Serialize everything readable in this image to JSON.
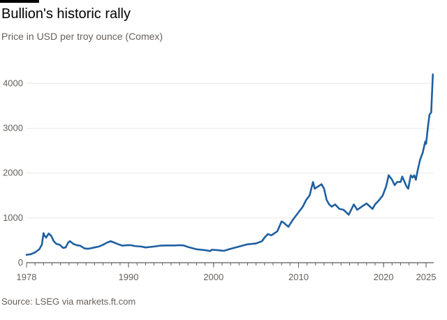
{
  "header": {
    "title": "Bullion's historic rally",
    "subtitle": "Price in USD per troy ounce (Comex)"
  },
  "footer": {
    "source": "Source: LSEG via markets.ft.com"
  },
  "colors": {
    "series": "#1f5fa0",
    "grid": "#ebe8e5",
    "axis": "#33302e",
    "text": "#66605c"
  },
  "chart_data": {
    "type": "line",
    "title": "Bullion's historic rally",
    "subtitle": "Price in USD per troy ounce (Comex)",
    "xlabel": "",
    "ylabel": "",
    "xlim": [
      1978,
      2025.9
    ],
    "ylim": [
      0,
      4300
    ],
    "x_ticks": [
      1978,
      1990,
      2000,
      2010,
      2020,
      2025
    ],
    "y_ticks": [
      0,
      1000,
      2000,
      3000,
      4000
    ],
    "grid": "horizontal",
    "legend": "none",
    "series": [
      {
        "x": [
          1978.0,
          1978.5,
          1979.0,
          1979.5,
          1979.8,
          1980.0,
          1980.1,
          1980.3,
          1980.6,
          1980.9,
          1981.2,
          1981.5,
          1981.9,
          1982.3,
          1982.6,
          1982.9,
          1983.1,
          1983.5,
          1983.9,
          1984.3,
          1984.8,
          1985.2,
          1985.5,
          1986.0,
          1986.5,
          1987.0,
          1987.5,
          1987.9,
          1988.3,
          1988.8,
          1989.3,
          1989.8,
          1990.3,
          1990.8,
          1991.5,
          1992.0,
          1993.0,
          1993.7,
          1994.5,
          1995.5,
          1996.0,
          1996.5,
          1997.0,
          1997.6,
          1998.0,
          1999.0,
          1999.6,
          1999.8,
          2000.5,
          2001.2,
          2002.0,
          2003.0,
          2004.0,
          2005.0,
          2005.7,
          2006.0,
          2006.4,
          2006.8,
          2007.5,
          2008.0,
          2008.2,
          2008.8,
          2009.3,
          2009.9,
          2010.5,
          2010.9,
          2011.3,
          2011.7,
          2011.9,
          2012.3,
          2012.7,
          2013.0,
          2013.3,
          2013.6,
          2013.9,
          2014.3,
          2014.8,
          2015.3,
          2015.9,
          2016.5,
          2016.9,
          2017.5,
          2018.0,
          2018.7,
          2019.0,
          2019.5,
          2019.9,
          2020.3,
          2020.6,
          2021.0,
          2021.3,
          2021.6,
          2022.0,
          2022.2,
          2022.7,
          2022.9,
          2023.2,
          2023.4,
          2023.6,
          2023.8,
          2024.0,
          2024.3,
          2024.6,
          2024.9,
          2025.0,
          2025.2,
          2025.4,
          2025.6,
          2025.8
        ],
        "values": [
          175,
          190,
          230,
          300,
          400,
          660,
          610,
          560,
          650,
          600,
          480,
          420,
          400,
          330,
          340,
          450,
          480,
          420,
          390,
          380,
          320,
          310,
          320,
          340,
          360,
          400,
          450,
          480,
          450,
          410,
          380,
          390,
          390,
          370,
          360,
          340,
          360,
          380,
          385,
          385,
          390,
          385,
          350,
          320,
          300,
          280,
          260,
          290,
          280,
          265,
          310,
          360,
          410,
          430,
          480,
          560,
          640,
          610,
          700,
          920,
          900,
          800,
          950,
          1100,
          1250,
          1400,
          1500,
          1800,
          1650,
          1700,
          1750,
          1650,
          1400,
          1300,
          1250,
          1300,
          1200,
          1180,
          1070,
          1300,
          1180,
          1260,
          1320,
          1200,
          1300,
          1400,
          1500,
          1700,
          1950,
          1850,
          1730,
          1800,
          1800,
          1920,
          1700,
          1650,
          1950,
          1900,
          1950,
          1850,
          2050,
          2300,
          2450,
          2700,
          2650,
          3000,
          3300,
          3350,
          4200
        ]
      }
    ]
  }
}
